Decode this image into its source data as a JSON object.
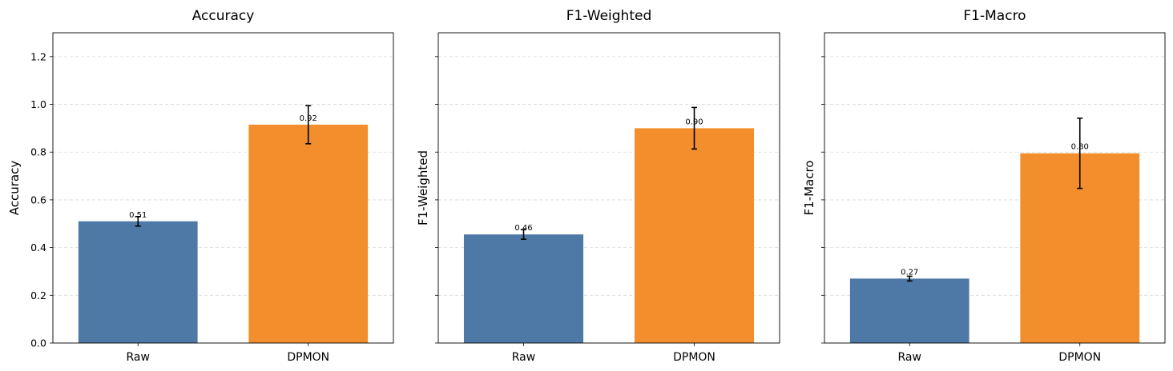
{
  "chart_data": [
    {
      "type": "bar",
      "title": "Accuracy",
      "ylabel": "Accuracy",
      "categories": [
        "Raw",
        "DPMON"
      ],
      "values": [
        0.51,
        0.915
      ],
      "errors": [
        0.02,
        0.08
      ],
      "value_labels": [
        "0.51",
        "0.92"
      ],
      "ylim": [
        0,
        1.3
      ],
      "yticks": [
        0.0,
        0.2,
        0.4,
        0.6,
        0.8,
        1.0,
        1.2
      ],
      "ytick_labels": [
        "0.0",
        "0.2",
        "0.4",
        "0.6",
        "0.8",
        "1.0",
        "1.2"
      ],
      "colors": [
        "#4e79a7",
        "#f28e2b"
      ],
      "grid": "y-dashed"
    },
    {
      "type": "bar",
      "title": "F1-Weighted",
      "ylabel": "F1-Weighted",
      "categories": [
        "Raw",
        "DPMON"
      ],
      "values": [
        0.455,
        0.9
      ],
      "errors": [
        0.02,
        0.087
      ],
      "value_labels": [
        "0.46",
        "0.90"
      ],
      "ylim": [
        0,
        1.3
      ],
      "yticks": [
        0.0,
        0.2,
        0.4,
        0.6,
        0.8,
        1.0,
        1.2
      ],
      "ytick_labels": [],
      "colors": [
        "#4e79a7",
        "#f28e2b"
      ],
      "grid": "y-dashed"
    },
    {
      "type": "bar",
      "title": "F1-Macro",
      "ylabel": "F1-Macro",
      "categories": [
        "Raw",
        "DPMON"
      ],
      "values": [
        0.27,
        0.795
      ],
      "errors": [
        0.01,
        0.147
      ],
      "value_labels": [
        "0.27",
        "0.80"
      ],
      "ylim": [
        0,
        1.3
      ],
      "yticks": [
        0.0,
        0.2,
        0.4,
        0.6,
        0.8,
        1.0,
        1.2
      ],
      "ytick_labels": [],
      "colors": [
        "#4e79a7",
        "#f28e2b"
      ],
      "grid": "y-dashed"
    }
  ]
}
